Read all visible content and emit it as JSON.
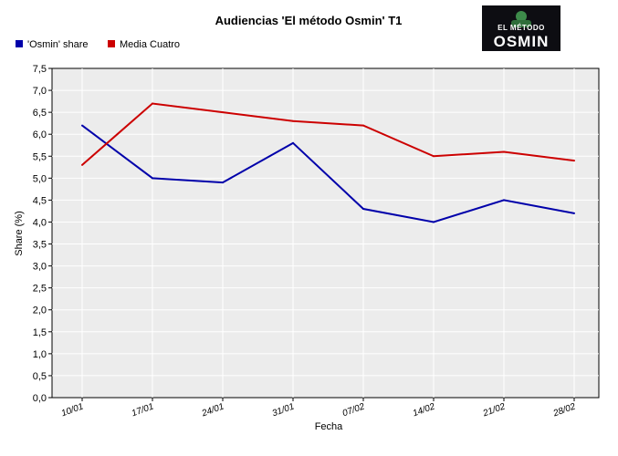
{
  "chart_data": {
    "type": "line",
    "title": "Audiencias 'El método Osmin' T1",
    "xlabel": "Fecha",
    "ylabel": "Share (%)",
    "categories": [
      "10/01",
      "17/01",
      "24/01",
      "31/01",
      "07/02",
      "14/02",
      "21/02",
      "28/02"
    ],
    "series": [
      {
        "name": "'Osmin' share",
        "color": "#0000aa",
        "values": [
          6.2,
          5.0,
          4.9,
          5.8,
          4.3,
          4.0,
          4.5,
          4.2
        ]
      },
      {
        "name": "Media Cuatro",
        "color": "#cc0000",
        "values": [
          5.3,
          6.7,
          6.5,
          6.3,
          6.2,
          5.5,
          5.6,
          5.4
        ]
      }
    ],
    "ylim": [
      0,
      7.5
    ],
    "yticks": [
      "0,0",
      "0,5",
      "1,0",
      "1,5",
      "2,0",
      "2,5",
      "3,0",
      "3,5",
      "4,0",
      "4,5",
      "5,0",
      "5,5",
      "6,0",
      "6,5",
      "7,0",
      "7,5"
    ],
    "grid": true,
    "legend_position": "top-left"
  },
  "logo": {
    "top_text": "EL MÉTODO",
    "main_text": "OSMIN"
  }
}
